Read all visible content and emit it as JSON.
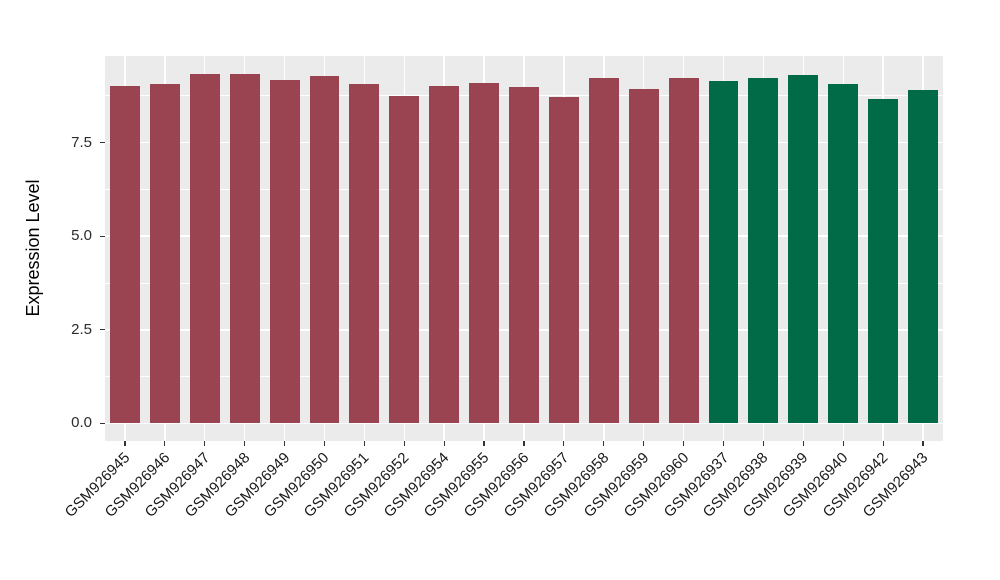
{
  "chart_data": {
    "type": "bar",
    "title": "",
    "xlabel": "",
    "ylabel": "Expression Level",
    "categories": [
      "GSM926945",
      "GSM926946",
      "GSM926947",
      "GSM926948",
      "GSM926949",
      "GSM926950",
      "GSM926951",
      "GSM926952",
      "GSM926954",
      "GSM926955",
      "GSM926956",
      "GSM926957",
      "GSM926958",
      "GSM926959",
      "GSM926960",
      "GSM926937",
      "GSM926938",
      "GSM926939",
      "GSM926940",
      "GSM926942",
      "GSM926943"
    ],
    "values": [
      9.02,
      9.05,
      9.33,
      9.33,
      9.18,
      9.28,
      9.07,
      8.75,
      9.01,
      9.09,
      8.99,
      8.71,
      9.23,
      8.92,
      9.23,
      9.15,
      9.21,
      9.31,
      9.05,
      8.65,
      8.9
    ],
    "groups": [
      "red",
      "red",
      "red",
      "red",
      "red",
      "red",
      "red",
      "red",
      "red",
      "red",
      "red",
      "red",
      "red",
      "red",
      "red",
      "green",
      "green",
      "green",
      "green",
      "green",
      "green"
    ],
    "group_colors": {
      "red": "#9B4451",
      "green": "#016A47"
    },
    "ylim": [
      -0.47,
      9.81
    ],
    "yticks": [
      0,
      2.5,
      5,
      7.5
    ],
    "ytick_labels": [
      "0.0",
      "2.5",
      "5.0",
      "7.5"
    ],
    "yminor": [
      1.25,
      3.75,
      6.25,
      8.75
    ],
    "legend": "none",
    "grid": true,
    "bar_rel_width": 0.75,
    "panel_bg": "#EBEBEB",
    "grid_color": "#FFFFFF",
    "tick_color": "#333333"
  }
}
